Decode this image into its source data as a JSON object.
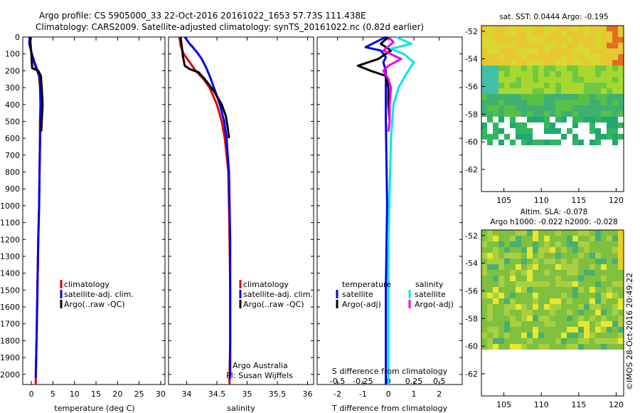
{
  "header": {
    "line1": "Argo profile: CS 5905000_33 22-Oct-2016 20161022_1653 57.73S 111.438E",
    "line2": "Climatology: CARS2009. Satellite-adjusted climatology: synTS_20161022.nc (0.82d earlier)"
  },
  "colors": {
    "climatology": "#e00000",
    "satellite": "#0000ee",
    "argo": "#000000",
    "satellite_salinity": "#00e6e6",
    "argo_salinity_diff": "#ee00ee"
  },
  "chart_data": [
    {
      "id": "temperature",
      "type": "line",
      "xlabel": "temperature (deg C)",
      "ylabel": "",
      "xlim": [
        -2,
        31
      ],
      "ylim": [
        2060,
        0
      ],
      "x_ticks": [
        "0",
        "5",
        "10",
        "15",
        "20",
        "25",
        "30"
      ],
      "y_ticks": [
        "0",
        "100",
        "200",
        "300",
        "400",
        "500",
        "600",
        "700",
        "800",
        "900",
        "1000",
        "1100",
        "1200",
        "1300",
        "1400",
        "1500",
        "1600",
        "1700",
        "1800",
        "1900",
        "2000"
      ],
      "legend": [
        "climatology",
        "satellite-adj. clim.",
        "Argo(..raw -QC)"
      ],
      "series": [
        {
          "name": "climatology",
          "color": "#e00000",
          "points": [
            [
              -0.3,
              0
            ],
            [
              -0.2,
              60
            ],
            [
              0.2,
              120
            ],
            [
              1.0,
              180
            ],
            [
              1.8,
              230
            ],
            [
              2.0,
              300
            ],
            [
              2.1,
              400
            ],
            [
              2.0,
              500
            ],
            [
              2.0,
              600
            ],
            [
              1.9,
              800
            ],
            [
              1.8,
              1000
            ],
            [
              1.6,
              1200
            ],
            [
              1.4,
              1500
            ],
            [
              1.2,
              1800
            ],
            [
              1.0,
              2060
            ]
          ]
        },
        {
          "name": "satellite-adj. clim.",
          "color": "#0000ee",
          "points": [
            [
              -0.4,
              0
            ],
            [
              -0.5,
              40
            ],
            [
              -0.1,
              80
            ],
            [
              0.6,
              140
            ],
            [
              1.3,
              190
            ],
            [
              1.9,
              240
            ],
            [
              2.1,
              300
            ],
            [
              2.2,
              400
            ],
            [
              2.1,
              500
            ],
            [
              2.0,
              650
            ],
            [
              1.9,
              800
            ],
            [
              1.8,
              1000
            ],
            [
              1.6,
              1200
            ],
            [
              1.4,
              1500
            ],
            [
              1.2,
              1800
            ],
            [
              1.0,
              2020
            ]
          ]
        },
        {
          "name": "Argo(..raw -QC)",
          "color": "#000000",
          "points": [
            [
              -0.3,
              0
            ],
            [
              -0.2,
              40
            ],
            [
              0.0,
              100
            ],
            [
              0.1,
              150
            ],
            [
              0.2,
              185
            ],
            [
              1.6,
              200
            ],
            [
              2.2,
              230
            ],
            [
              2.4,
              300
            ],
            [
              2.6,
              400
            ],
            [
              2.4,
              500
            ],
            [
              2.3,
              560
            ]
          ]
        }
      ]
    },
    {
      "id": "salinity",
      "type": "line",
      "xlabel": "salinity",
      "ylabel": "",
      "xlim": [
        33.7,
        36.1
      ],
      "ylim": [
        2060,
        0
      ],
      "x_ticks": [
        "34",
        "34.5",
        "35",
        "35.5",
        "36"
      ],
      "legend": [
        "climatology",
        "satellite-adj. clim.",
        "Argo(..raw -QC)"
      ],
      "annotation": [
        "Argo Australia",
        "PI: Susan Wijffels"
      ],
      "series": [
        {
          "name": "climatology",
          "color": "#e00000",
          "points": [
            [
              33.88,
              0
            ],
            [
              33.9,
              50
            ],
            [
              33.95,
              100
            ],
            [
              34.05,
              150
            ],
            [
              34.15,
              200
            ],
            [
              34.28,
              250
            ],
            [
              34.38,
              300
            ],
            [
              34.5,
              400
            ],
            [
              34.58,
              500
            ],
            [
              34.63,
              600
            ],
            [
              34.66,
              700
            ],
            [
              34.69,
              800
            ],
            [
              34.7,
              1000
            ],
            [
              34.71,
              1200
            ],
            [
              34.72,
              1500
            ],
            [
              34.72,
              1800
            ],
            [
              34.71,
              2000
            ],
            [
              34.71,
              2060
            ]
          ]
        },
        {
          "name": "satellite-adj. clim.",
          "color": "#0000ee",
          "points": [
            [
              33.97,
              0
            ],
            [
              34.05,
              40
            ],
            [
              34.1,
              60
            ],
            [
              34.17,
              90
            ],
            [
              34.25,
              130
            ],
            [
              34.32,
              180
            ],
            [
              34.38,
              230
            ],
            [
              34.45,
              300
            ],
            [
              34.55,
              400
            ],
            [
              34.62,
              500
            ],
            [
              34.66,
              600
            ],
            [
              34.68,
              700
            ],
            [
              34.7,
              800
            ],
            [
              34.71,
              1000
            ],
            [
              34.72,
              1200
            ],
            [
              34.72,
              1500
            ],
            [
              34.72,
              1800
            ],
            [
              34.72,
              2000
            ],
            [
              34.71,
              2030
            ]
          ]
        },
        {
          "name": "Argo(..raw -QC)",
          "color": "#000000",
          "points": [
            [
              33.9,
              0
            ],
            [
              33.92,
              60
            ],
            [
              33.94,
              120
            ],
            [
              33.97,
              170
            ],
            [
              34.05,
              190
            ],
            [
              34.2,
              210
            ],
            [
              34.3,
              250
            ],
            [
              34.45,
              320
            ],
            [
              34.58,
              400
            ],
            [
              34.65,
              470
            ],
            [
              34.68,
              540
            ],
            [
              34.7,
              600
            ]
          ]
        }
      ]
    },
    {
      "id": "difference",
      "type": "line",
      "xlabel": "T difference from climatology",
      "xlabel_top": "S difference from climatology",
      "xlim": [
        -2.8,
        2.9
      ],
      "ylim": [
        2060,
        0
      ],
      "x_ticks": [
        "-2",
        "-1",
        "0",
        "1",
        "2"
      ],
      "x_ticks_salinity": [
        "-0.5",
        "-0.25",
        "0",
        "0.25",
        "0.5"
      ],
      "legend_left_title": "temperature",
      "legend_right_title": "salinity",
      "legend_left": [
        "satellite",
        "Argo(-adj)"
      ],
      "legend_right": [
        "satellite",
        "Argo(-adj)"
      ],
      "series": [
        {
          "name": "satellite",
          "group": "temperature",
          "color": "#0000ee",
          "points": [
            [
              -0.1,
              0
            ],
            [
              -0.9,
              60
            ],
            [
              -0.3,
              80
            ],
            [
              -0.1,
              120
            ],
            [
              -0.2,
              150
            ],
            [
              -0.1,
              200
            ],
            [
              -0.1,
              300
            ],
            [
              -0.1,
              500
            ],
            [
              -0.05,
              1000
            ],
            [
              -0.1,
              1500
            ],
            [
              -0.1,
              2060
            ]
          ]
        },
        {
          "name": "Argo(-adj)",
          "group": "temperature",
          "color": "#000000",
          "points": [
            [
              0.0,
              0
            ],
            [
              -0.3,
              40
            ],
            [
              0.1,
              80
            ],
            [
              -0.4,
              130
            ],
            [
              -1.2,
              170
            ],
            [
              -0.7,
              200
            ],
            [
              -0.1,
              230
            ],
            [
              0.0,
              300
            ],
            [
              0.0,
              400
            ],
            [
              0.05,
              500
            ],
            [
              0.0,
              560
            ]
          ]
        },
        {
          "name": "satellite",
          "group": "salinity",
          "color": "#00e6e6",
          "points": [
            [
              0.3,
              0
            ],
            [
              0.9,
              40
            ],
            [
              0.1,
              70
            ],
            [
              0.6,
              100
            ],
            [
              1.0,
              150
            ],
            [
              0.7,
              220
            ],
            [
              0.4,
              300
            ],
            [
              0.2,
              400
            ],
            [
              0.1,
              600
            ],
            [
              0.05,
              900
            ],
            [
              0.0,
              1200
            ],
            [
              0.0,
              1600
            ],
            [
              0.0,
              2000
            ],
            [
              0.0,
              2060
            ]
          ]
        },
        {
          "name": "Argo(-adj)",
          "group": "salinity",
          "color": "#ee00ee",
          "points": [
            [
              0.0,
              0
            ],
            [
              0.2,
              30
            ],
            [
              -0.2,
              80
            ],
            [
              0.5,
              130
            ],
            [
              0.0,
              170
            ],
            [
              -0.2,
              200
            ],
            [
              0.0,
              250
            ],
            [
              0.1,
              300
            ],
            [
              0.05,
              400
            ],
            [
              0.05,
              500
            ],
            [
              0.0,
              560
            ]
          ]
        }
      ]
    },
    {
      "id": "sst_map",
      "type": "heatmap",
      "title": "sat. SST: 0.0444 Argo: -0.195",
      "xlim": [
        102,
        121
      ],
      "ylim": [
        -63.6,
        -51.6
      ],
      "x_ticks": [
        "105",
        "110",
        "115",
        "120"
      ],
      "y_ticks": [
        "-52",
        "-54",
        "-56",
        "-58",
        "-60",
        "-62"
      ]
    },
    {
      "id": "sla_map",
      "type": "heatmap",
      "title": "Altim. SLA: -0.078",
      "subtitle": "Argo h1000: -0.022 h2000: -0.028",
      "xlim": [
        102,
        121
      ],
      "ylim": [
        -63.6,
        -51.6
      ],
      "x_ticks": [
        "105",
        "110",
        "115",
        "120"
      ],
      "y_ticks": [
        "-52",
        "-54",
        "-56",
        "-58",
        "-60",
        "-62"
      ]
    }
  ],
  "credit": "©IMOS 28-Oct-2016 20:49:22"
}
